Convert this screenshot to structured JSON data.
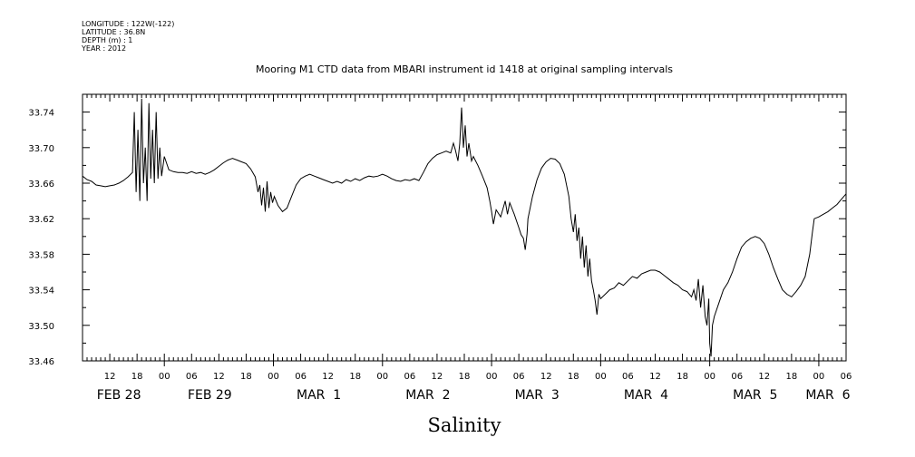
{
  "header": {
    "longitude": "LONGITUDE : 122W(-122)",
    "latitude": "LATITUDE : 36.8N",
    "depth": "DEPTH (m) : 1",
    "year": "YEAR : 2012"
  },
  "chart_data": {
    "type": "line",
    "title": "Mooring M1 CTD data from MBARI instrument id 1418 at original sampling intervals",
    "xlabel": "Salinity",
    "ylabel": "",
    "grid": false,
    "ylim": [
      33.46,
      33.76
    ],
    "yticks": [
      33.46,
      33.5,
      33.54,
      33.58,
      33.62,
      33.66,
      33.7,
      33.74
    ],
    "ytick_labels": [
      "33.46",
      "33.50",
      "33.54",
      "33.58",
      "33.62",
      "33.66",
      "33.70",
      "33.74"
    ],
    "xlim_hours": [
      6,
      174
    ],
    "x_unit": "hours from FEB 28 00:00 (2012)",
    "hour_ticks": [
      {
        "h": 12,
        "label": "12"
      },
      {
        "h": 18,
        "label": "18"
      },
      {
        "h": 24,
        "label": "00"
      },
      {
        "h": 30,
        "label": "06"
      },
      {
        "h": 36,
        "label": "12"
      },
      {
        "h": 42,
        "label": "18"
      },
      {
        "h": 48,
        "label": "00"
      },
      {
        "h": 54,
        "label": "06"
      },
      {
        "h": 60,
        "label": "12"
      },
      {
        "h": 66,
        "label": "18"
      },
      {
        "h": 72,
        "label": "00"
      },
      {
        "h": 78,
        "label": "06"
      },
      {
        "h": 84,
        "label": "12"
      },
      {
        "h": 90,
        "label": "18"
      },
      {
        "h": 96,
        "label": "00"
      },
      {
        "h": 102,
        "label": "06"
      },
      {
        "h": 108,
        "label": "12"
      },
      {
        "h": 114,
        "label": "18"
      },
      {
        "h": 120,
        "label": "00"
      },
      {
        "h": 126,
        "label": "06"
      },
      {
        "h": 132,
        "label": "12"
      },
      {
        "h": 138,
        "label": "18"
      },
      {
        "h": 144,
        "label": "00"
      },
      {
        "h": 150,
        "label": "06"
      },
      {
        "h": 156,
        "label": "12"
      },
      {
        "h": 162,
        "label": "18"
      },
      {
        "h": 168,
        "label": "00"
      },
      {
        "h": 174,
        "label": "06"
      }
    ],
    "day_labels": [
      {
        "h": 14,
        "label": "FEB 28"
      },
      {
        "h": 34,
        "label": "FEB 29"
      },
      {
        "h": 58,
        "label": "MAR  1"
      },
      {
        "h": 82,
        "label": "MAR  2"
      },
      {
        "h": 106,
        "label": "MAR  3"
      },
      {
        "h": 130,
        "label": "MAR  4"
      },
      {
        "h": 154,
        "label": "MAR  5"
      },
      {
        "h": 170,
        "label": "MAR  6"
      }
    ],
    "series": [
      {
        "name": "",
        "color": "#000000",
        "points": [
          [
            6.0,
            33.668
          ],
          [
            7.0,
            33.664
          ],
          [
            8.0,
            33.662
          ],
          [
            9.0,
            33.658
          ],
          [
            10.0,
            33.657
          ],
          [
            11.0,
            33.656
          ],
          [
            12.0,
            33.657
          ],
          [
            13.0,
            33.658
          ],
          [
            14.0,
            33.66
          ],
          [
            15.0,
            33.663
          ],
          [
            16.0,
            33.667
          ],
          [
            17.0,
            33.672
          ],
          [
            17.4,
            33.74
          ],
          [
            17.8,
            33.65
          ],
          [
            18.2,
            33.72
          ],
          [
            18.6,
            33.64
          ],
          [
            19.0,
            33.755
          ],
          [
            19.4,
            33.66
          ],
          [
            19.8,
            33.7
          ],
          [
            20.2,
            33.64
          ],
          [
            20.6,
            33.75
          ],
          [
            21.0,
            33.665
          ],
          [
            21.4,
            33.72
          ],
          [
            21.8,
            33.66
          ],
          [
            22.2,
            33.74
          ],
          [
            22.6,
            33.665
          ],
          [
            23.0,
            33.7
          ],
          [
            23.4,
            33.668
          ],
          [
            24.0,
            33.69
          ],
          [
            25.0,
            33.675
          ],
          [
            26.0,
            33.673
          ],
          [
            27.0,
            33.672
          ],
          [
            28.0,
            33.672
          ],
          [
            29.0,
            33.671
          ],
          [
            30.0,
            33.673
          ],
          [
            31.0,
            33.671
          ],
          [
            32.0,
            33.672
          ],
          [
            33.0,
            33.67
          ],
          [
            34.0,
            33.672
          ],
          [
            35.0,
            33.675
          ],
          [
            36.0,
            33.679
          ],
          [
            37.0,
            33.683
          ],
          [
            38.0,
            33.686
          ],
          [
            39.0,
            33.688
          ],
          [
            40.0,
            33.686
          ],
          [
            41.0,
            33.684
          ],
          [
            42.0,
            33.682
          ],
          [
            43.0,
            33.676
          ],
          [
            44.0,
            33.667
          ],
          [
            44.6,
            33.65
          ],
          [
            45.0,
            33.658
          ],
          [
            45.4,
            33.635
          ],
          [
            45.8,
            33.655
          ],
          [
            46.2,
            33.628
          ],
          [
            46.6,
            33.662
          ],
          [
            47.0,
            33.632
          ],
          [
            47.4,
            33.65
          ],
          [
            47.8,
            33.638
          ],
          [
            48.2,
            33.645
          ],
          [
            48.6,
            33.64
          ],
          [
            49.0,
            33.635
          ],
          [
            50.0,
            33.628
          ],
          [
            51.0,
            33.632
          ],
          [
            52.0,
            33.645
          ],
          [
            53.0,
            33.658
          ],
          [
            54.0,
            33.665
          ],
          [
            55.0,
            33.668
          ],
          [
            56.0,
            33.67
          ],
          [
            57.0,
            33.668
          ],
          [
            58.0,
            33.666
          ],
          [
            59.0,
            33.664
          ],
          [
            60.0,
            33.662
          ],
          [
            61.0,
            33.66
          ],
          [
            62.0,
            33.662
          ],
          [
            63.0,
            33.66
          ],
          [
            64.0,
            33.664
          ],
          [
            65.0,
            33.662
          ],
          [
            66.0,
            33.665
          ],
          [
            67.0,
            33.663
          ],
          [
            68.0,
            33.666
          ],
          [
            69.0,
            33.668
          ],
          [
            70.0,
            33.667
          ],
          [
            71.0,
            33.668
          ],
          [
            72.0,
            33.67
          ],
          [
            73.0,
            33.668
          ],
          [
            74.0,
            33.665
          ],
          [
            75.0,
            33.663
          ],
          [
            76.0,
            33.662
          ],
          [
            77.0,
            33.664
          ],
          [
            78.0,
            33.663
          ],
          [
            79.0,
            33.665
          ],
          [
            80.0,
            33.663
          ],
          [
            81.0,
            33.672
          ],
          [
            82.0,
            33.682
          ],
          [
            83.0,
            33.688
          ],
          [
            84.0,
            33.692
          ],
          [
            85.0,
            33.694
          ],
          [
            86.0,
            33.696
          ],
          [
            87.0,
            33.694
          ],
          [
            87.6,
            33.705
          ],
          [
            88.0,
            33.698
          ],
          [
            88.6,
            33.685
          ],
          [
            89.0,
            33.705
          ],
          [
            89.4,
            33.745
          ],
          [
            89.8,
            33.7
          ],
          [
            90.2,
            33.725
          ],
          [
            90.6,
            33.69
          ],
          [
            91.0,
            33.705
          ],
          [
            91.6,
            33.685
          ],
          [
            92.0,
            33.69
          ],
          [
            93.0,
            33.68
          ],
          [
            94.0,
            33.668
          ],
          [
            95.0,
            33.655
          ],
          [
            95.6,
            33.64
          ],
          [
            96.0,
            33.628
          ],
          [
            96.4,
            33.614
          ],
          [
            97.0,
            33.63
          ],
          [
            98.0,
            33.622
          ],
          [
            99.0,
            33.64
          ],
          [
            99.5,
            33.625
          ],
          [
            100.0,
            33.638
          ],
          [
            101.0,
            33.625
          ],
          [
            102.0,
            33.61
          ],
          [
            102.5,
            33.602
          ],
          [
            103.0,
            33.598
          ],
          [
            103.4,
            33.585
          ],
          [
            103.8,
            33.603
          ],
          [
            104.0,
            33.62
          ],
          [
            105.0,
            33.645
          ],
          [
            106.0,
            33.664
          ],
          [
            107.0,
            33.677
          ],
          [
            108.0,
            33.684
          ],
          [
            109.0,
            33.688
          ],
          [
            110.0,
            33.687
          ],
          [
            111.0,
            33.682
          ],
          [
            112.0,
            33.67
          ],
          [
            113.0,
            33.645
          ],
          [
            113.5,
            33.62
          ],
          [
            114.0,
            33.605
          ],
          [
            114.4,
            33.625
          ],
          [
            114.8,
            33.595
          ],
          [
            115.2,
            33.61
          ],
          [
            115.6,
            33.575
          ],
          [
            116.0,
            33.6
          ],
          [
            116.4,
            33.565
          ],
          [
            116.8,
            33.59
          ],
          [
            117.2,
            33.555
          ],
          [
            117.6,
            33.575
          ],
          [
            118.0,
            33.55
          ],
          [
            118.4,
            33.54
          ],
          [
            118.8,
            33.528
          ],
          [
            119.2,
            33.512
          ],
          [
            119.6,
            33.535
          ],
          [
            120.0,
            33.53
          ],
          [
            121.0,
            33.535
          ],
          [
            122.0,
            33.54
          ],
          [
            123.0,
            33.542
          ],
          [
            124.0,
            33.548
          ],
          [
            125.0,
            33.545
          ],
          [
            126.0,
            33.55
          ],
          [
            127.0,
            33.555
          ],
          [
            128.0,
            33.553
          ],
          [
            129.0,
            33.558
          ],
          [
            130.0,
            33.56
          ],
          [
            131.0,
            33.562
          ],
          [
            132.0,
            33.562
          ],
          [
            133.0,
            33.56
          ],
          [
            134.0,
            33.556
          ],
          [
            135.0,
            33.552
          ],
          [
            136.0,
            33.548
          ],
          [
            137.0,
            33.545
          ],
          [
            138.0,
            33.54
          ],
          [
            139.0,
            33.538
          ],
          [
            140.0,
            33.532
          ],
          [
            140.5,
            33.54
          ],
          [
            141.0,
            33.528
          ],
          [
            141.5,
            33.552
          ],
          [
            142.0,
            33.52
          ],
          [
            142.5,
            33.545
          ],
          [
            143.0,
            33.51
          ],
          [
            143.4,
            33.5
          ],
          [
            143.8,
            33.53
          ],
          [
            144.0,
            33.48
          ],
          [
            144.3,
            33.465
          ],
          [
            144.6,
            33.5
          ],
          [
            145.0,
            33.51
          ],
          [
            146.0,
            33.525
          ],
          [
            147.0,
            33.54
          ],
          [
            148.0,
            33.548
          ],
          [
            149.0,
            33.56
          ],
          [
            150.0,
            33.575
          ],
          [
            151.0,
            33.588
          ],
          [
            152.0,
            33.594
          ],
          [
            153.0,
            33.598
          ],
          [
            154.0,
            33.6
          ],
          [
            155.0,
            33.598
          ],
          [
            156.0,
            33.592
          ],
          [
            157.0,
            33.58
          ],
          [
            158.0,
            33.565
          ],
          [
            159.0,
            33.552
          ],
          [
            160.0,
            33.54
          ],
          [
            161.0,
            33.535
          ],
          [
            162.0,
            33.532
          ],
          [
            163.0,
            33.538
          ],
          [
            164.0,
            33.545
          ],
          [
            165.0,
            33.555
          ],
          [
            166.0,
            33.58
          ],
          [
            166.6,
            33.605
          ],
          [
            167.0,
            33.62
          ],
          [
            168.0,
            33.622
          ],
          [
            169.0,
            33.625
          ],
          [
            170.0,
            33.628
          ],
          [
            171.0,
            33.632
          ],
          [
            172.0,
            33.636
          ],
          [
            173.0,
            33.642
          ],
          [
            174.0,
            33.648
          ]
        ]
      }
    ]
  }
}
